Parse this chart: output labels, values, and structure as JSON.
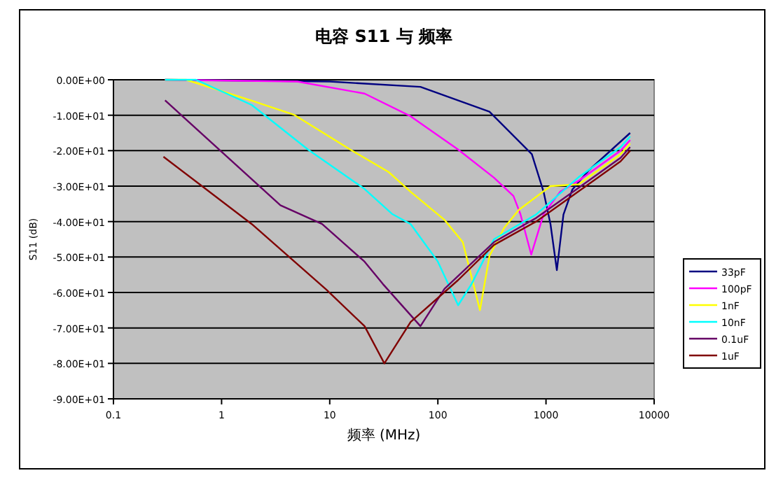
{
  "chart_data": {
    "type": "line",
    "title": "电容 S11 与 频率",
    "xlabel": "频率 (MHz)",
    "ylabel": "S11 (dB)",
    "log": "x",
    "grid": "y",
    "legend": "right",
    "marker": "none",
    "line_style": "solid",
    "xlim": [
      0.1,
      10000
    ],
    "xticks": [
      0.1,
      1,
      10,
      100,
      1000,
      10000
    ],
    "ylim": [
      -90,
      0
    ],
    "yticks": [
      {
        "value": 0,
        "label": "0.00E+00"
      },
      {
        "value": -10,
        "label": "-1.00E+01"
      },
      {
        "value": -20,
        "label": "-2.00E+01"
      },
      {
        "value": -30,
        "label": "-3.00E+01"
      },
      {
        "value": -40,
        "label": "-4.00E+01"
      },
      {
        "value": -50,
        "label": "-5.00E+01"
      },
      {
        "value": -60,
        "label": "-6.00E+01"
      },
      {
        "value": -70,
        "label": "-7.00E+01"
      },
      {
        "value": -80,
        "label": "-8.00E+01"
      },
      {
        "value": -90,
        "label": "-9.00E+01"
      }
    ],
    "series": [
      {
        "name": "33pF",
        "color": "#000080",
        "x": [
          0.3,
          10,
          69,
          300,
          740,
          950,
          1100,
          1260,
          1450,
          1750,
          2460,
          6000
        ],
        "values": [
          0,
          -0.5,
          -2,
          -9,
          -21,
          -31.6,
          -40.7,
          -53.7,
          -38,
          -31,
          -25.7,
          -15
        ]
      },
      {
        "name": "100pF",
        "color": "#ff00ff",
        "x": [
          0.3,
          5,
          21,
          56,
          154,
          330,
          500,
          580,
          730,
          950,
          1350,
          2000,
          4900,
          6000
        ],
        "values": [
          0,
          -0.5,
          -3.9,
          -10.3,
          -19.7,
          -27.6,
          -32.8,
          -37.9,
          -49.3,
          -37.9,
          -31.6,
          -28.5,
          -20,
          -17
        ]
      },
      {
        "name": "1nF",
        "color": "#ffff00",
        "x": [
          0.3,
          0.47,
          1.9,
          4.7,
          15.5,
          35,
          56,
          115,
          170,
          245,
          300,
          410,
          560,
          1100,
          2000,
          4900,
          6000
        ],
        "values": [
          0,
          0,
          -5.9,
          -9.9,
          -19.7,
          -26,
          -31.6,
          -39.5,
          -45.8,
          -65,
          -49.7,
          -41.8,
          -36.7,
          -30,
          -29.5,
          -21,
          -18
        ]
      },
      {
        "name": "10nF",
        "color": "#00ffff",
        "x": [
          0.3,
          0.58,
          1.9,
          6.3,
          21,
          38,
          56,
          100,
          154,
          205,
          330,
          810,
          2000,
          4900,
          6000
        ],
        "values": [
          0,
          0,
          -7.1,
          -19.7,
          -30.8,
          -37.9,
          -40.7,
          -51.3,
          -63.6,
          -57.6,
          -45,
          -38,
          -27.5,
          -19,
          -16
        ]
      },
      {
        "name": "0.1uF",
        "color": "#660066",
        "x": [
          0.3,
          3.5,
          8.5,
          21,
          31,
          69,
          115,
          330,
          810,
          2000,
          4900,
          6000
        ],
        "values": [
          -5.8,
          -35.4,
          -40.7,
          -51.3,
          -57.6,
          -69.5,
          -59,
          -45.8,
          -39,
          -30.5,
          -22,
          -19
        ]
      },
      {
        "name": "1uF",
        "color": "#800000",
        "x": [
          0.29,
          1.9,
          9.3,
          21,
          32,
          56,
          154,
          330,
          810,
          2000,
          4900,
          6000
        ],
        "values": [
          -21.7,
          -40.7,
          -59.2,
          -69.5,
          -80,
          -68.3,
          -56.5,
          -46.6,
          -40,
          -31.5,
          -23,
          -20
        ]
      }
    ]
  }
}
